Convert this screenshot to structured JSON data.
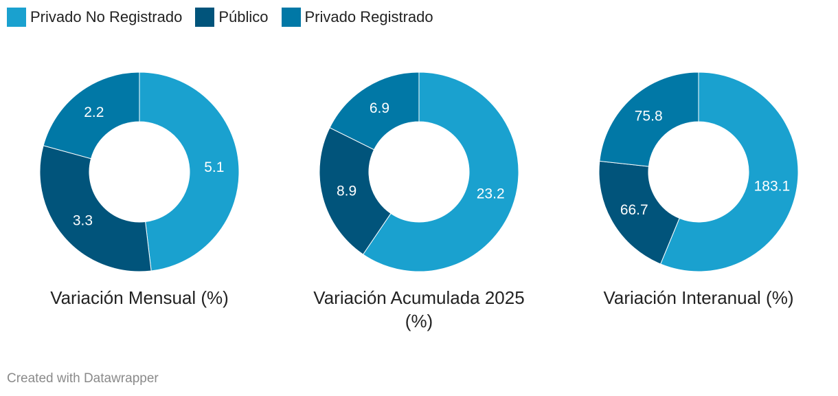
{
  "legend": [
    {
      "label": "Privado No Registrado",
      "color": "#1aa1cf"
    },
    {
      "label": "Público",
      "color": "#01547b"
    },
    {
      "label": "Privado Registrado",
      "color": "#0178a6"
    }
  ],
  "chart_data": [
    {
      "type": "pie",
      "title": "Variación Mensual (%)",
      "labels": [
        "Privado No Registrado",
        "Público",
        "Privado Registrado"
      ],
      "values": [
        5.1,
        3.3,
        2.2
      ],
      "value_labels": [
        "5.1",
        "3.3",
        "2.2"
      ]
    },
    {
      "type": "pie",
      "title": "Variación Acumulada 2025 (%)",
      "labels": [
        "Privado No Registrado",
        "Público",
        "Privado Registrado"
      ],
      "values": [
        23.2,
        8.9,
        6.9
      ],
      "value_labels": [
        "23.2",
        "8.9",
        "6.9"
      ]
    },
    {
      "type": "pie",
      "title": "Variación Interanual (%)",
      "labels": [
        "Privado No Registrado",
        "Público",
        "Privado Registrado"
      ],
      "values": [
        183.1,
        66.7,
        75.8
      ],
      "value_labels": [
        "183.1",
        "66.7",
        "75.8"
      ]
    }
  ],
  "footer": "Created with Datawrapper"
}
